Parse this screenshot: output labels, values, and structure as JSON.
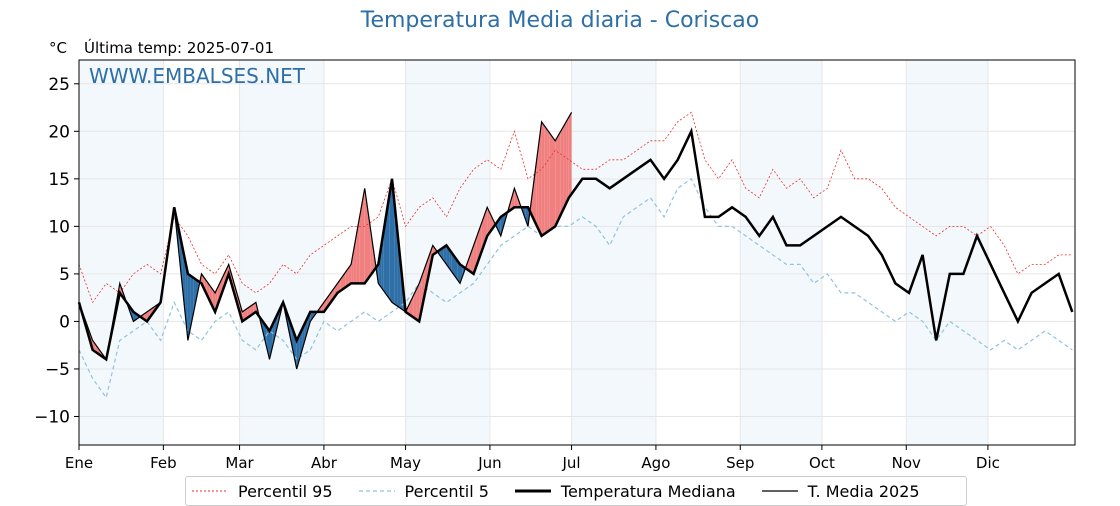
{
  "title": "Temperatura Media diaria - Coriscao",
  "unit": "°C",
  "last_temp_label": "Última temp: 2025-07-01",
  "watermark": "WWW.EMBALSES.NET",
  "colors": {
    "title": "#2e6fa7",
    "watermark": "#2e6fa7",
    "p95": "#e8302a",
    "p5": "#8fc4dc",
    "median": "#000000",
    "media2025": "#000000",
    "warm_fill": "#f08080",
    "cold_fill": "#2e6fa7",
    "band": "#f3f8fc"
  },
  "legend": [
    {
      "label": "Percentil 95",
      "style": "p95"
    },
    {
      "label": "Percentil 5",
      "style": "p5"
    },
    {
      "label": "Temperatura Mediana",
      "style": "median"
    },
    {
      "label": "T. Media 2025",
      "style": "media2025"
    }
  ],
  "chart_data": {
    "type": "line",
    "title": "Temperatura Media diaria - Coriscao",
    "ylabel": "°C",
    "xlabel": "",
    "xlim": [
      0,
      366
    ],
    "ylim": [
      -13,
      27.5
    ],
    "y_ticks": [
      -10,
      -5,
      0,
      5,
      10,
      15,
      20,
      25
    ],
    "x_ticks": [
      {
        "label": "Ene",
        "day": 0
      },
      {
        "label": "Feb",
        "day": 31
      },
      {
        "label": "Mar",
        "day": 59
      },
      {
        "label": "Abr",
        "day": 90
      },
      {
        "label": "May",
        "day": 120
      },
      {
        "label": "Jun",
        "day": 151
      },
      {
        "label": "Jul",
        "day": 181
      },
      {
        "label": "Ago",
        "day": 212
      },
      {
        "label": "Sep",
        "day": 243
      },
      {
        "label": "Oct",
        "day": 273
      },
      {
        "label": "Nov",
        "day": 304
      },
      {
        "label": "Dic",
        "day": 334
      }
    ],
    "grid": true,
    "legend_position": "bottom",
    "series": [
      {
        "name": "Percentil 95",
        "x": [
          0,
          5,
          10,
          15,
          20,
          25,
          30,
          35,
          40,
          45,
          50,
          55,
          60,
          65,
          70,
          75,
          80,
          85,
          90,
          95,
          100,
          105,
          110,
          115,
          120,
          125,
          130,
          135,
          140,
          145,
          150,
          155,
          160,
          165,
          170,
          175,
          180,
          185,
          190,
          195,
          200,
          205,
          210,
          215,
          220,
          225,
          230,
          235,
          240,
          245,
          250,
          255,
          260,
          265,
          270,
          275,
          280,
          285,
          290,
          295,
          300,
          305,
          310,
          315,
          320,
          325,
          330,
          335,
          340,
          345,
          350,
          355,
          360,
          365
        ],
        "values": [
          6,
          2,
          4,
          3,
          5,
          6,
          5,
          11,
          9,
          6,
          5,
          7,
          4,
          3,
          4,
          6,
          5,
          7,
          8,
          9,
          10,
          10,
          11,
          15,
          10,
          12,
          13,
          11,
          14,
          16,
          17,
          16,
          20,
          15,
          16,
          18,
          17,
          16,
          16,
          17,
          17,
          18,
          19,
          19,
          21,
          22,
          17,
          15,
          17,
          14,
          13,
          16,
          14,
          15,
          13,
          14,
          18,
          15,
          15,
          14,
          12,
          11,
          10,
          9,
          10,
          10,
          9,
          10,
          8,
          5,
          6,
          6,
          7,
          7
        ]
      },
      {
        "name": "Percentil 5",
        "x": [
          0,
          5,
          10,
          15,
          20,
          25,
          30,
          35,
          40,
          45,
          50,
          55,
          60,
          65,
          70,
          75,
          80,
          85,
          90,
          95,
          100,
          105,
          110,
          115,
          120,
          125,
          130,
          135,
          140,
          145,
          150,
          155,
          160,
          165,
          170,
          175,
          180,
          185,
          190,
          195,
          200,
          205,
          210,
          215,
          220,
          225,
          230,
          235,
          240,
          245,
          250,
          255,
          260,
          265,
          270,
          275,
          280,
          285,
          290,
          295,
          300,
          305,
          310,
          315,
          320,
          325,
          330,
          335,
          340,
          345,
          350,
          355,
          360,
          365
        ],
        "values": [
          -3,
          -6,
          -8,
          -2,
          -1,
          0,
          -2,
          2,
          -1,
          -2,
          0,
          1,
          -2,
          -3,
          -1,
          -2,
          -4,
          -3,
          0,
          -1,
          0,
          1,
          0,
          1,
          2,
          4,
          3,
          2,
          3,
          4,
          6,
          8,
          9,
          10,
          9,
          10,
          10,
          11,
          10,
          8,
          11,
          12,
          13,
          11,
          14,
          15,
          12,
          10,
          10,
          9,
          8,
          7,
          6,
          6,
          4,
          5,
          3,
          3,
          2,
          1,
          0,
          1,
          0,
          -2,
          0,
          -1,
          -2,
          -3,
          -2,
          -3,
          -2,
          -1,
          -2,
          -3
        ]
      },
      {
        "name": "Temperatura Mediana",
        "x": [
          0,
          5,
          10,
          15,
          20,
          25,
          30,
          35,
          40,
          45,
          50,
          55,
          60,
          65,
          70,
          75,
          80,
          85,
          90,
          95,
          100,
          105,
          110,
          115,
          120,
          125,
          130,
          135,
          140,
          145,
          150,
          155,
          160,
          165,
          170,
          175,
          180,
          185,
          190,
          195,
          200,
          205,
          210,
          215,
          220,
          225,
          230,
          235,
          240,
          245,
          250,
          255,
          260,
          265,
          270,
          275,
          280,
          285,
          290,
          295,
          300,
          305,
          310,
          315,
          320,
          325,
          330,
          335,
          340,
          345,
          350,
          355,
          360,
          365
        ],
        "values": [
          2,
          -3,
          -4,
          3,
          1,
          0,
          2,
          12,
          5,
          4,
          1,
          5,
          0,
          1,
          -1,
          2,
          -2,
          1,
          1,
          3,
          4,
          4,
          6,
          15,
          1,
          0,
          7,
          8,
          6,
          5,
          9,
          11,
          12,
          12,
          9,
          10,
          13,
          15,
          15,
          14,
          15,
          16,
          17,
          15,
          17,
          20,
          11,
          11,
          12,
          11,
          9,
          11,
          8,
          8,
          9,
          10,
          11,
          10,
          9,
          7,
          4,
          3,
          7,
          -2,
          5,
          5,
          9,
          6,
          3,
          0,
          3,
          4,
          5,
          1
        ]
      },
      {
        "name": "T. Media 2025",
        "x": [
          0,
          5,
          10,
          15,
          20,
          25,
          30,
          35,
          40,
          45,
          50,
          55,
          60,
          65,
          70,
          75,
          80,
          85,
          90,
          95,
          100,
          105,
          110,
          115,
          120,
          125,
          130,
          135,
          140,
          145,
          150,
          155,
          160,
          165,
          170,
          175,
          181
        ],
        "values": [
          2,
          -2,
          -4,
          4,
          0,
          1,
          2,
          12,
          -2,
          5,
          3,
          6,
          1,
          2,
          -4,
          2,
          -5,
          0,
          2,
          4,
          6,
          14,
          4,
          2,
          1,
          4,
          8,
          6,
          4,
          8,
          12,
          9,
          14,
          10,
          21,
          19,
          22
        ]
      }
    ]
  }
}
